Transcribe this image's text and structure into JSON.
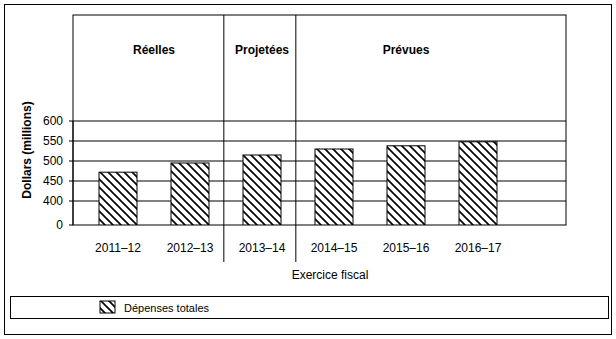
{
  "chart_data": {
    "type": "bar",
    "categories": [
      "2011–12",
      "2012–13",
      "2013–14",
      "2014–15",
      "2015–16",
      "2016–17"
    ],
    "values": [
      472,
      495,
      515,
      530,
      538,
      548
    ],
    "color": "#000000",
    "ylim": [
      0,
      600
    ],
    "yticks": [
      0,
      400,
      450,
      500,
      550,
      600
    ],
    "grid": true,
    "y_label": "Dollars (millions)",
    "x_label": "Exercice fiscal",
    "legend": "bottom",
    "series_name": "Dépenses totales",
    "annotations": [
      {
        "text": "Réelles",
        "from": "2011–12",
        "to": "2012–13"
      },
      {
        "text": "Projetées",
        "from": "2013–14",
        "to": "2013–14"
      },
      {
        "text": "Prévues",
        "from": "2014–15",
        "to": "2016–17"
      }
    ]
  }
}
